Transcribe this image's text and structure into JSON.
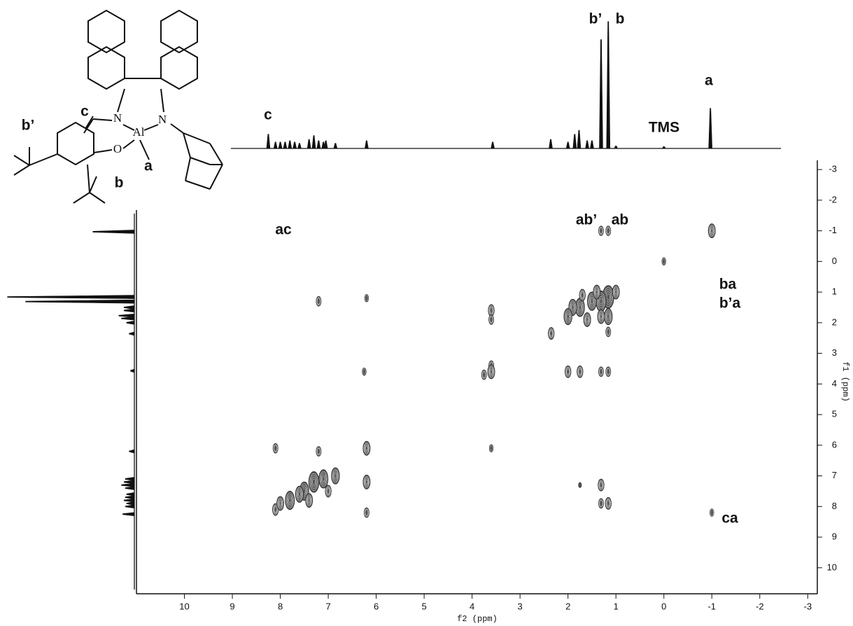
{
  "chart_data": {
    "type": "nmr2d",
    "xlabel": "f2 (ppm)",
    "ylabel": "f1 (ppm)",
    "xlim": [
      11,
      -3.2
    ],
    "ylim": [
      -3.3,
      10.85
    ],
    "xticks": [
      10,
      9,
      8,
      7,
      6,
      5,
      4,
      3,
      2,
      1,
      0,
      -1,
      -2,
      -3
    ],
    "yticks": [
      -3,
      -2,
      -1,
      0,
      1,
      2,
      3,
      4,
      5,
      6,
      7,
      8,
      9,
      10
    ],
    "color": "#333333",
    "f2_projection": {
      "x": [
        8.25,
        8.1,
        8.0,
        7.9,
        7.8,
        7.7,
        7.6,
        7.4,
        7.3,
        7.2,
        7.1,
        7.05,
        6.85,
        6.2,
        3.57,
        2.36,
        2.0,
        1.86,
        1.77,
        1.6,
        1.5,
        1.31,
        1.16,
        1.0,
        0.0,
        -0.97
      ],
      "intensity": [
        11,
        5,
        5,
        5,
        6,
        5,
        4,
        7,
        10,
        6,
        5,
        6,
        4,
        6,
        5,
        7,
        5,
        11,
        14,
        6,
        6,
        84,
        98,
        2,
        1.5,
        31
      ]
    },
    "f1_projection": {
      "y": [
        -0.97,
        1.16,
        1.31,
        1.5,
        1.6,
        1.77,
        1.86,
        2.0,
        2.36,
        3.57,
        6.2,
        7.1,
        7.2,
        7.3,
        7.4,
        7.6,
        7.7,
        7.8,
        7.9,
        8.0,
        8.25
      ],
      "intensity": [
        32,
        98,
        84,
        8,
        8,
        12,
        10,
        6,
        4,
        3,
        4,
        7,
        8,
        10,
        7,
        6,
        7,
        8,
        6,
        7,
        9
      ]
    },
    "cross_peaks": {
      "x": [
        -1,
        0,
        1.16,
        1.31,
        1.16,
        1.31,
        1.0,
        1.5,
        1.75,
        1.9,
        2.0,
        1.6,
        1.16,
        1.31,
        1.16,
        1.7,
        1.4,
        2.35,
        7.2,
        6.2,
        3.6,
        3.6,
        3.6,
        3.6,
        3.75,
        6.25,
        2.0,
        1.75,
        1.31,
        1.16,
        8.1,
        6.2,
        6.2,
        6.2,
        8.1,
        7.8,
        7.5,
        7.3,
        7.1,
        7.2,
        6.85,
        7.6,
        8.0,
        7.4,
        7.0,
        1.31,
        1.16,
        1.31,
        -1,
        1.75,
        3.6
      ],
      "y": [
        -1,
        0,
        -1,
        -1,
        1.16,
        1.3,
        1.0,
        1.3,
        1.5,
        1.5,
        1.8,
        1.9,
        1.8,
        1.8,
        2.3,
        1.1,
        1.0,
        2.35,
        1.3,
        1.2,
        1.6,
        1.9,
        3.4,
        3.6,
        3.7,
        3.6,
        3.6,
        3.6,
        3.6,
        3.6,
        6.1,
        6.1,
        7.2,
        8.2,
        8.1,
        7.8,
        7.5,
        7.2,
        7.1,
        6.2,
        7.0,
        7.6,
        7.9,
        7.8,
        7.5,
        7.3,
        7.9,
        7.9,
        8.2,
        7.3,
        6.1
      ],
      "intensity": [
        5,
        2,
        3,
        3,
        9,
        8,
        5,
        7,
        7,
        6,
        6,
        5,
        6,
        5,
        3,
        4,
        5,
        4,
        3,
        2,
        4,
        3,
        3,
        5,
        3,
        2,
        4,
        4,
        3,
        3,
        3,
        5,
        5,
        3,
        4,
        7,
        7,
        8,
        7,
        3,
        6,
        6,
        5,
        5,
        4,
        4,
        4,
        3,
        2,
        1,
        2
      ]
    },
    "peak_labels": [
      "c",
      "b’",
      "b",
      "a",
      "TMS"
    ],
    "cross_labels": [
      "ac",
      "ab’",
      "ab",
      "ba",
      "b’a",
      "ca"
    ],
    "structure": {
      "atoms": [
        "N",
        "N",
        "Al",
        "O"
      ],
      "labels": [
        "c",
        "b’",
        "a",
        "b"
      ]
    }
  }
}
